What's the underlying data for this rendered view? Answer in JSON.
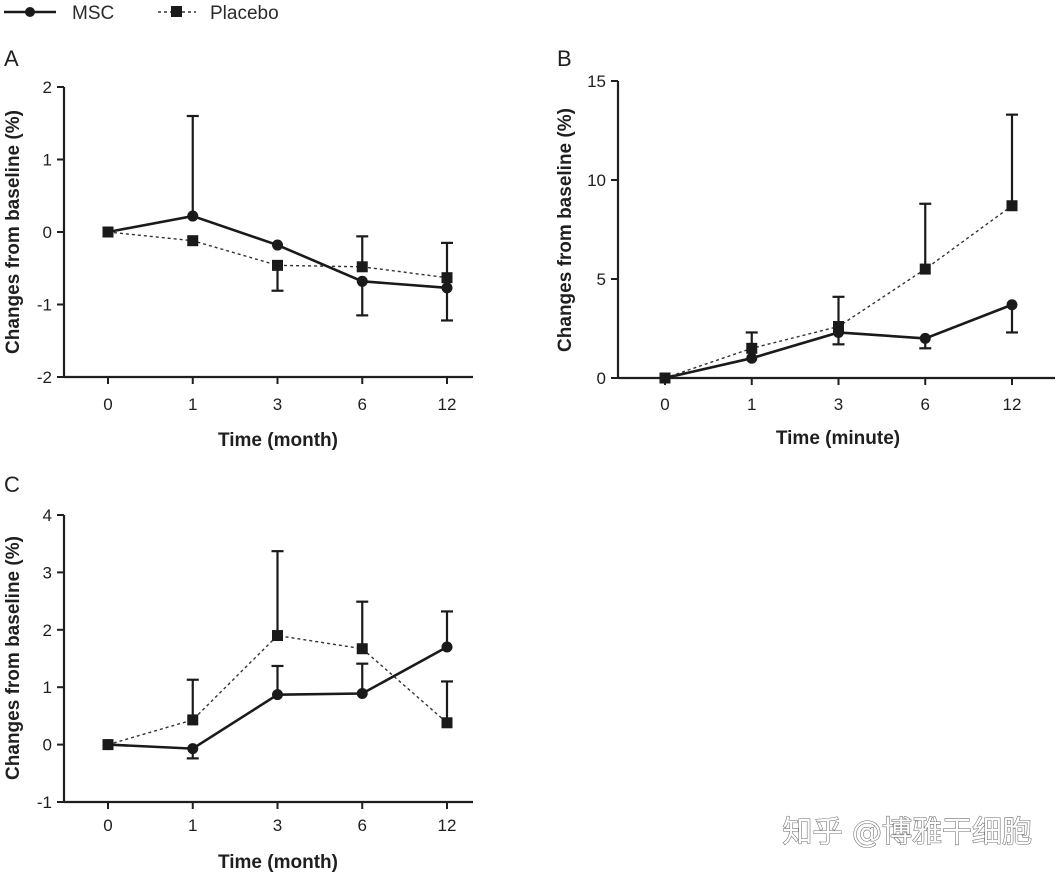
{
  "legend": {
    "entries": [
      {
        "name": "MSC",
        "marker": "circle",
        "line": "solid"
      },
      {
        "name": "Placebo",
        "marker": "square",
        "line": "dotted"
      }
    ]
  },
  "watermark": "知乎 @博雅干细胞",
  "chart_data": [
    {
      "type": "line",
      "panel": "A",
      "xlabel": "Time (month)",
      "ylabel": "Changes from baseline (%)",
      "categories": [
        "0",
        "1",
        "3",
        "6",
        "12"
      ],
      "ylim": [
        -2,
        2
      ],
      "yticks": [
        "-2",
        "-1",
        "0",
        "1",
        "2"
      ],
      "series": [
        {
          "name": "MSC",
          "values": [
            0,
            0.22,
            -0.18,
            -0.68,
            -0.77
          ],
          "err_up": [
            0,
            1.38,
            0,
            0,
            0
          ],
          "err_down": [
            0,
            0,
            0,
            0.47,
            0.45
          ]
        },
        {
          "name": "Placebo",
          "values": [
            0,
            -0.12,
            -0.46,
            -0.48,
            -0.63
          ],
          "err_up": [
            0,
            0,
            0,
            0.42,
            0.48
          ],
          "err_down": [
            0,
            0,
            0.35,
            0,
            0
          ]
        }
      ]
    },
    {
      "type": "line",
      "panel": "B",
      "xlabel": "Time (minute)",
      "ylabel": "Changes from baseline (%)",
      "categories": [
        "0",
        "1",
        "3",
        "6",
        "12"
      ],
      "ylim": [
        0,
        15
      ],
      "yticks": [
        "0",
        "5",
        "10",
        "15"
      ],
      "series": [
        {
          "name": "MSC",
          "values": [
            0,
            1.0,
            2.3,
            2.0,
            3.7
          ],
          "err_up": [
            0,
            0,
            0,
            0,
            0
          ],
          "err_down": [
            0,
            0,
            0.6,
            0.5,
            1.4
          ]
        },
        {
          "name": "Placebo",
          "values": [
            0,
            1.5,
            2.6,
            5.5,
            8.7
          ],
          "err_up": [
            0,
            0.8,
            1.5,
            3.3,
            4.6
          ],
          "err_down": [
            0,
            0,
            0,
            0,
            0
          ]
        }
      ]
    },
    {
      "type": "line",
      "panel": "C",
      "xlabel": "Time (month)",
      "ylabel": "Changes from baseline (%)",
      "categories": [
        "0",
        "1",
        "3",
        "6",
        "12"
      ],
      "ylim": [
        -1,
        4
      ],
      "yticks": [
        "-1",
        "0",
        "1",
        "2",
        "3",
        "4"
      ],
      "series": [
        {
          "name": "MSC",
          "values": [
            0,
            -0.07,
            0.87,
            0.89,
            1.7
          ],
          "err_up": [
            0,
            0,
            0.5,
            0.52,
            0.62
          ],
          "err_down": [
            0,
            0.17,
            0,
            0,
            0
          ]
        },
        {
          "name": "Placebo",
          "values": [
            0,
            0.43,
            1.9,
            1.67,
            0.38
          ],
          "err_up": [
            0,
            0.7,
            1.47,
            0.82,
            0.72
          ],
          "err_down": [
            0,
            0,
            0,
            0,
            0
          ]
        }
      ]
    }
  ]
}
